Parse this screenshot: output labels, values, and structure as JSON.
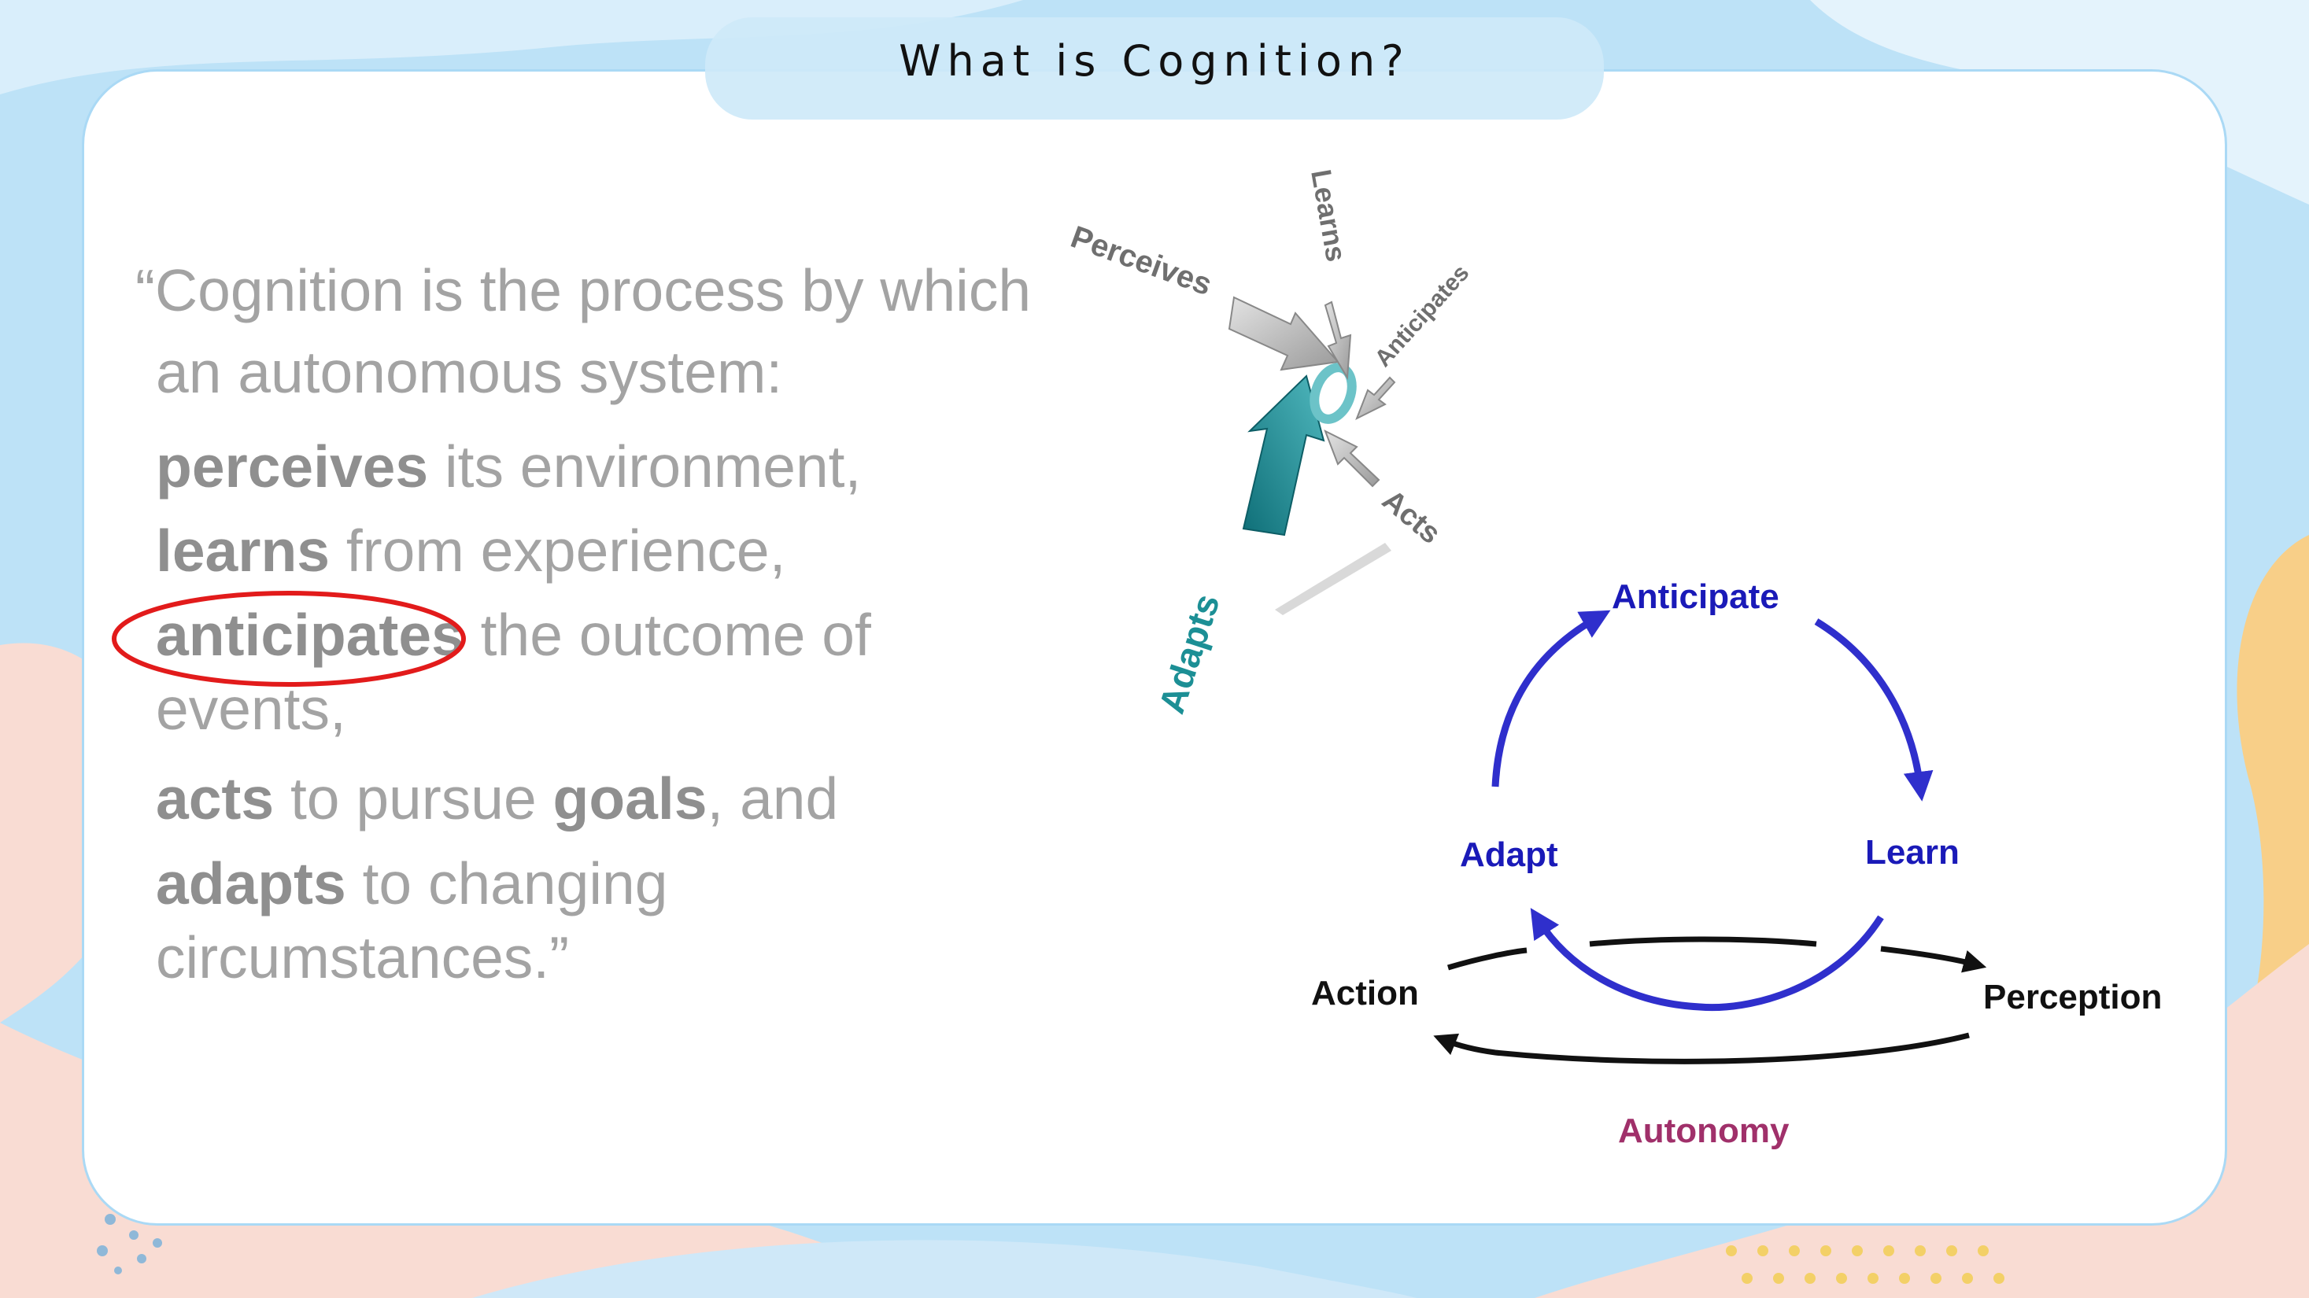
{
  "slide": {
    "title": "What is Cognition?"
  },
  "quote": {
    "open_mark": "“",
    "line1": "Cognition is the process by which",
    "line2": "an autonomous system:",
    "perceives_bold": "perceives",
    "perceives_rest": " its environment,",
    "learns_bold": "learns",
    "learns_rest": " from experience,",
    "anticipates_bold": "anticipates",
    "anticipates_rest": " the outcome of",
    "events": "events,",
    "acts_bold": "acts",
    "acts_mid": " to pursue ",
    "goals_bold": "goals",
    "acts_rest": ", and",
    "adapts_bold": "adapts",
    "adapts_rest": " to changing",
    "circumstances": "circumstances.”"
  },
  "arrow_graphic": {
    "labels": {
      "perceives": "Perceives",
      "learns": "Learns",
      "anticipates": "Anticipates",
      "acts": "Acts",
      "adapts": "Adapts"
    }
  },
  "cycle_diagram": {
    "anticipate": "Anticipate",
    "learn": "Learn",
    "adapt": "Adapt",
    "action": "Action",
    "perception": "Perception",
    "autonomy": "Autonomy"
  },
  "colors": {
    "cycle_blue": "#2f2fcc",
    "label_blue": "#1a1ab8",
    "autonomy": "#a0306a",
    "highlight_circle": "#e21b1b",
    "teal": "#1c8f95",
    "quote_gray": "#a3a3a3"
  }
}
